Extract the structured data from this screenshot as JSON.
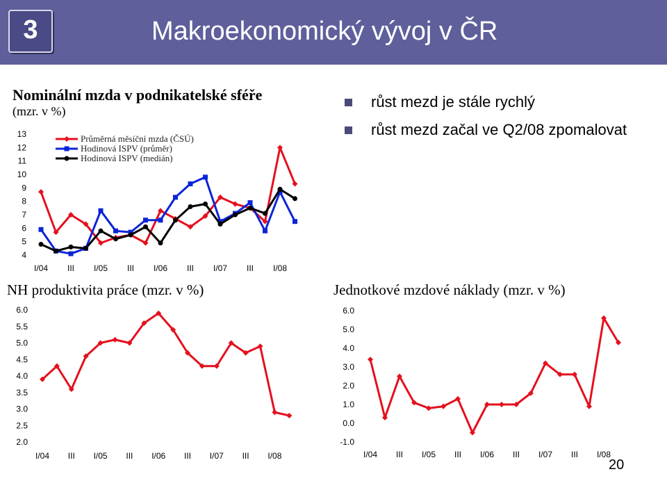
{
  "header": {
    "badge": "3",
    "title": "Makroekonomický vývoj v ČR"
  },
  "bullets": [
    "růst mezd je stále rychlý",
    "růst mezd začal ve Q2/08 zpomalovat"
  ],
  "page_number": "20",
  "colors": {
    "header_bg": "#5f5f9c",
    "red": "#e4101e",
    "blue": "#0a24d8",
    "black": "#000000",
    "bullet": "#4a4a7a"
  },
  "chart_data": [
    {
      "type": "line",
      "title": "Nominální mzda v podnikatelské sféře",
      "subtitle": "(mzr. v %)",
      "x": [
        "I/04",
        "II",
        "III",
        "IV",
        "I/05",
        "II",
        "III",
        "IV",
        "I/06",
        "II",
        "III",
        "IV",
        "I/07",
        "II",
        "III",
        "IV",
        "I/08",
        "II"
      ],
      "x_tick_labels": [
        "I/04",
        "III",
        "I/05",
        "III",
        "I/06",
        "III",
        "I/07",
        "III",
        "I/08"
      ],
      "ylim": [
        4,
        13
      ],
      "y_ticks": [
        4,
        5,
        6,
        7,
        8,
        9,
        10,
        11,
        12,
        13
      ],
      "legend_position": "top-left",
      "series": [
        {
          "name": "Průměrná měsíční mzda (ČSÚ)",
          "color": "#e4101e",
          "marker": "diamond",
          "values": [
            8.7,
            5.7,
            7.0,
            6.3,
            4.9,
            5.3,
            5.5,
            4.9,
            7.3,
            6.7,
            6.1,
            6.9,
            8.3,
            7.8,
            7.5,
            6.5,
            12.0,
            9.3
          ]
        },
        {
          "name": "Hodinová ISPV (průměr)",
          "color": "#0a24d8",
          "marker": "square",
          "values": [
            5.9,
            4.3,
            4.1,
            4.5,
            7.3,
            5.8,
            5.7,
            6.6,
            6.6,
            8.3,
            9.3,
            9.8,
            6.5,
            7.1,
            7.9,
            5.8,
            8.7,
            6.5
          ]
        },
        {
          "name": "Hodinová ISPV (medián)",
          "color": "#000000",
          "marker": "circle",
          "values": [
            4.8,
            4.3,
            4.6,
            4.5,
            5.8,
            5.2,
            5.5,
            6.1,
            4.9,
            6.6,
            7.6,
            7.8,
            6.3,
            7.0,
            7.5,
            7.1,
            8.9,
            8.2
          ]
        }
      ]
    },
    {
      "type": "line",
      "title": "NH produktivita práce (mzr. v %)",
      "x": [
        "I/04",
        "II",
        "III",
        "IV",
        "I/05",
        "II",
        "III",
        "IV",
        "I/06",
        "II",
        "III",
        "IV",
        "I/07",
        "II",
        "III",
        "IV",
        "I/08",
        "II"
      ],
      "x_tick_labels": [
        "I/04",
        "III",
        "I/05",
        "III",
        "I/06",
        "III",
        "I/07",
        "III",
        "I/08"
      ],
      "ylim": [
        2.0,
        6.0
      ],
      "y_ticks": [
        "2.0",
        "2.5",
        "3.0",
        "3.5",
        "4.0",
        "4.5",
        "5.0",
        "5.5",
        "6.0"
      ],
      "series": [
        {
          "color": "#e4101e",
          "marker": "diamond",
          "values": [
            3.9,
            4.3,
            3.6,
            4.6,
            5.0,
            5.1,
            5.0,
            5.6,
            5.9,
            5.4,
            4.7,
            4.3,
            4.3,
            5.0,
            4.7,
            4.9,
            2.9,
            2.8
          ]
        }
      ]
    },
    {
      "type": "line",
      "title": "Jednotkové mzdové náklady (mzr. v %)",
      "x": [
        "I/04",
        "II",
        "III",
        "IV",
        "I/05",
        "II",
        "III",
        "IV",
        "I/06",
        "II",
        "III",
        "IV",
        "I/07",
        "II",
        "III",
        "IV",
        "I/08",
        "II"
      ],
      "x_tick_labels": [
        "I/04",
        "III",
        "I/05",
        "III",
        "I/06",
        "III",
        "I/07",
        "III",
        "I/08"
      ],
      "ylim": [
        -1.0,
        6.0
      ],
      "y_ticks": [
        "-1.0",
        "0.0",
        "1.0",
        "2.0",
        "3.0",
        "4.0",
        "5.0",
        "6.0"
      ],
      "series": [
        {
          "color": "#e4101e",
          "marker": "diamond",
          "values": [
            3.4,
            0.3,
            2.5,
            1.1,
            0.8,
            0.9,
            1.3,
            -0.5,
            1.0,
            1.0,
            1.0,
            1.6,
            3.2,
            2.6,
            2.6,
            0.9,
            5.6,
            4.3
          ]
        }
      ]
    }
  ]
}
